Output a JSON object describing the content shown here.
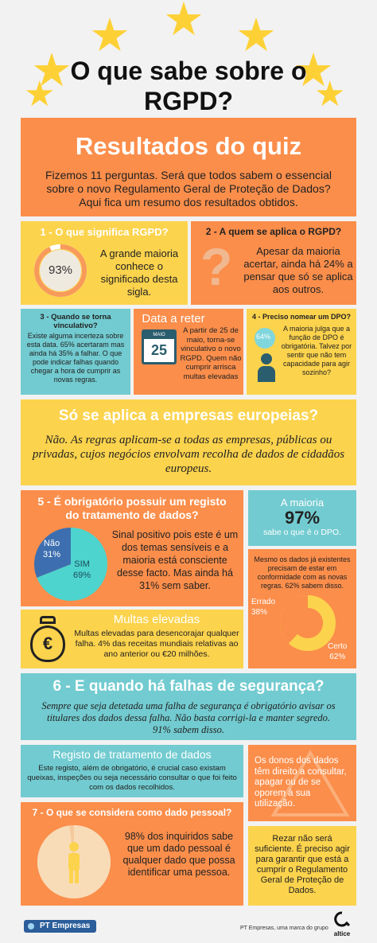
{
  "header": {
    "title_line1": "O que sabe sobre o",
    "title_line2": "RGPD?"
  },
  "results": {
    "title": "Resultados do quiz",
    "intro": "Fizemos 11 perguntas. Será que todos sabem o essencial sobre o novo Regulamento Geral de Proteção de Dados? Aqui fica um resumo dos resultados obtidos."
  },
  "q1": {
    "title": "1 - O que significa  RGPD?",
    "pct": "93%",
    "pct_value": 0.93,
    "text": "A grande maioria conhece o significado desta sigla."
  },
  "q2": {
    "title": "2 - A quem se aplica o RGPD?",
    "text": "Apesar da maioria acertar, ainda há 24% a pensar que só se aplica aos outros."
  },
  "q3": {
    "title": "3 - Quando se torna vinculativo?",
    "text": "Existe alguma incerteza sobre esta data. 65% acertaram mas ainda há 35% a falhar. O que  pode indicar falhas quando chegar a hora de cumprir as novas regras."
  },
  "date": {
    "title": "Data a reter",
    "cal_month": "MAIO",
    "cal_day": "25",
    "text": "A partir de 25 de maio, torna-se vinculativo o novo RGPD. Quem não cumprir arrisca multas elevadas"
  },
  "q4": {
    "title": "4 - Preciso nomear um DPO?",
    "pct": "64%",
    "text": "A maioria julga que a função de DPO é obrigatória. Talvez por sentir que não tem capacidade para agir sozinho?"
  },
  "europe": {
    "title": "Só se aplica a empresas europeias?",
    "text": "Não. As regras aplicam-se a todas as empresas, públicas ou privadas, cujos negócios envolvam recolha de dados de cidadãos europeus."
  },
  "q5": {
    "title": "5 - É obrigatório possuir um registo do tratamento de dados?",
    "no_label": "Não",
    "no_pct": "31%",
    "yes_label": "SIM",
    "yes_pct": "69%",
    "no_value": 31,
    "yes_value": 69,
    "text": "Sinal positivo pois este é um dos temas sensíveis e a maioria está consciente desse facto. Mas ainda há 31% sem saber."
  },
  "dpo": {
    "label": "A maioria",
    "pct": "97%",
    "text": "sabe o que é o DPO."
  },
  "existing": {
    "text": "Mesmo os dados já existentes precisam de estar em conformidade com as novas regras. 62% sabem disso.",
    "wrong_label": "Errado",
    "wrong_pct": "38%",
    "right_label": "Certo",
    "right_pct": "62%",
    "wrong_value": 38,
    "right_value": 62
  },
  "fines": {
    "title": "Multas elevadas",
    "text": "Multas elevadas para desencorajar qualquer falha. 4% das receitas mundiais relativas ao ano anterior ou €20 milhões."
  },
  "q6": {
    "title": "6 - E quando há falhas de segurança?",
    "text": "Sempre que seja detetada uma falha de segurança é obrigatório avisar os titulares dos dados dessa falha. Não basta corrigi-la e manter segredo. 91% sabem disso."
  },
  "registry": {
    "title": "Registo de tratamento de dados",
    "text": "Este registo, além de obrigatório, é crucial caso existam queixas, inspeções ou seja necessário consultar o que foi feito com os dados recolhidos."
  },
  "owners": {
    "text": "Os donos dos dados têm direito a consultar, apagar ou de se oporem à sua utilização."
  },
  "q7": {
    "title": "7 - O que se considera como dado pessoal?",
    "text": "98% dos inquiridos sabe que um dado pessoal é qualquer dado que possa identificar uma pessoa.",
    "pct_value": 0.98
  },
  "pray": {
    "text": "Rezar não será suficiente. É preciso agir para garantir que está a cumprir o Regulamento Geral de Proteção de Dados."
  },
  "footer": {
    "brand": "PT Empresas",
    "tagline": "PT Empresas, uma marca do grupo",
    "altice": "altice"
  }
}
